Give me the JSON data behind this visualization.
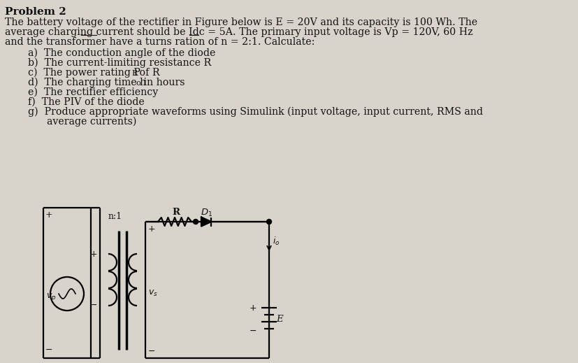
{
  "title": "Problem 2",
  "line1": "The battery voltage of the rectifier in Figure below is E = 20V and its capacity is 100 Wh. The",
  "line2": "average charging current should be Idc = 5A. The primary input voltage is Vp = 120V, 60 Hz",
  "line3": "and the transformer have a turns ration of n = 2:1. Calculate:",
  "item_a": "a)  The conduction angle of the diode",
  "item_b": "b)  The current-limiting resistance R",
  "item_c_pre": "c)  The power rating P",
  "item_c_sub": "R",
  "item_c_post": " of R",
  "item_d_pre": "d)  The charging time h",
  "item_d_sub": "o",
  "item_d_post": " in hours",
  "item_e": "e)  The rectifier efficiency",
  "item_f": "f)  The PIV of the diode",
  "item_g1": "g)  Produce appropriate waveforms using Simulink (input voltage, input current, RMS and",
  "item_g2": "      average currents)",
  "bg_color": "#d8d4cc",
  "text_color": "#111111",
  "title_fs": 11,
  "body_fs": 10.2
}
